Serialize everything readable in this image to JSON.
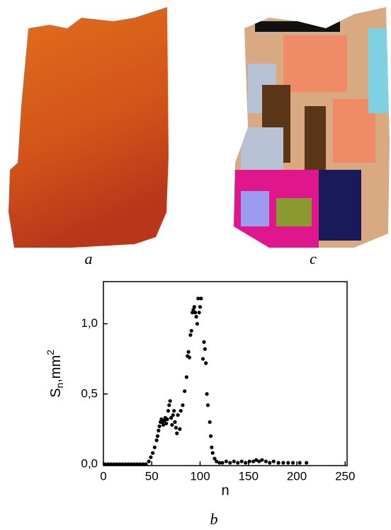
{
  "panels": {
    "left_label": "a",
    "right_label": "c",
    "bottom_label": "b"
  },
  "chart_data": {
    "type": "scatter",
    "xlabel": "n",
    "ylabel": [
      "S",
      "n",
      ",mm",
      "2"
    ],
    "color": "#000000",
    "xlim": [
      0,
      252
    ],
    "ylim": [
      -0.01,
      1.3
    ],
    "xticks": [
      0,
      50,
      100,
      150,
      200,
      250
    ],
    "yticks": [
      {
        "value": 0,
        "label": "0,0"
      },
      {
        "value": 0.5,
        "label": "0,5"
      },
      {
        "value": 1,
        "label": "1,0"
      }
    ],
    "x": [
      2,
      5,
      8,
      11,
      14,
      17,
      20,
      23,
      26,
      29,
      32,
      35,
      38,
      41,
      44,
      47,
      49,
      51,
      53,
      55,
      56,
      57,
      58,
      59,
      60,
      61,
      62,
      63,
      64,
      65,
      66,
      67,
      68,
      69,
      70,
      71,
      72,
      73,
      74,
      75,
      76,
      77,
      79,
      80,
      82,
      84,
      86,
      87,
      88,
      89,
      90,
      91,
      92,
      93,
      94,
      95,
      96,
      97,
      98,
      99,
      100,
      101,
      103,
      104,
      105,
      106,
      107,
      108,
      110,
      111,
      112,
      113,
      115,
      117,
      120,
      123,
      127,
      131,
      135,
      139,
      143,
      147,
      151,
      155,
      158,
      161,
      164,
      168,
      172,
      176,
      181,
      186,
      191,
      196,
      203,
      210
    ],
    "values": [
      0,
      0,
      0,
      0,
      0,
      0,
      0,
      0,
      0,
      0,
      0,
      0,
      0,
      0,
      0,
      0.02,
      0.05,
      0.08,
      0.12,
      0.17,
      0.2,
      0.24,
      0.27,
      0.3,
      0.32,
      0.3,
      0.28,
      0.31,
      0.33,
      0.29,
      0.32,
      0.38,
      0.42,
      0.45,
      0.33,
      0.28,
      0.35,
      0.38,
      0.3,
      0.26,
      0.22,
      0.35,
      0.25,
      0.38,
      0.42,
      0.52,
      0.62,
      0.77,
      0.8,
      0.76,
      0.92,
      0.95,
      1.08,
      1.1,
      1.12,
      1.08,
      1.05,
      1.0,
      1.18,
      1.08,
      1.12,
      1.18,
      0.75,
      0.87,
      0.82,
      0.72,
      0.5,
      0.42,
      0.3,
      0.2,
      0.12,
      0.08,
      0.04,
      0.02,
      0.01,
      0.01,
      0.02,
      0.01,
      0.02,
      0.01,
      0.02,
      0.01,
      0.02,
      0.02,
      0.03,
      0.02,
      0.03,
      0.02,
      0.01,
      0.02,
      0.01,
      0.01,
      0.01,
      0.01,
      0.01,
      0.01
    ]
  }
}
